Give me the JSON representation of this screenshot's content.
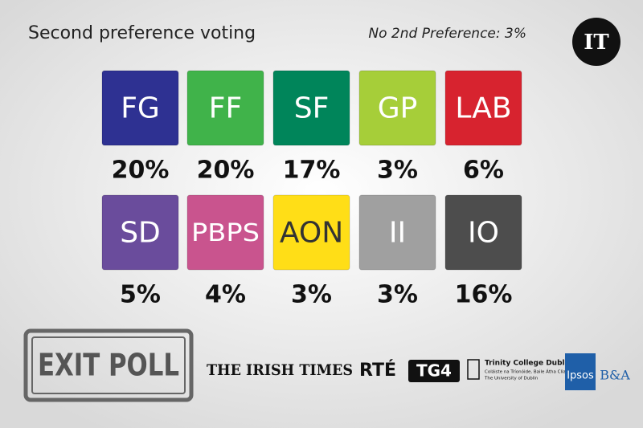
{
  "header": {
    "title": "Second preference voting",
    "note": "No 2nd Preference: 3%",
    "logo": "IT"
  },
  "parties": [
    {
      "label": "FG",
      "value": "20%",
      "color": "#2e3192",
      "text_color": "#ffffff"
    },
    {
      "label": "FF",
      "value": "20%",
      "color": "#40b34a",
      "text_color": "#ffffff"
    },
    {
      "label": "SF",
      "value": "17%",
      "color": "#00855a",
      "text_color": "#ffffff"
    },
    {
      "label": "GP",
      "value": "3%",
      "color": "#a6ce39",
      "text_color": "#ffffff"
    },
    {
      "label": "LAB",
      "value": "6%",
      "color": "#d7232f",
      "text_color": "#ffffff"
    },
    {
      "label": "SD",
      "value": "5%",
      "color": "#6a4c9c",
      "text_color": "#ffffff"
    },
    {
      "label": "PBPS",
      "value": "4%",
      "color": "#c9548e",
      "text_color": "#ffffff"
    },
    {
      "label": "AON",
      "value": "3%",
      "color": "#ffde17",
      "text_color": "#333333"
    },
    {
      "label": "II",
      "value": "3%",
      "color": "#a0a0a0",
      "text_color": "#ffffff"
    },
    {
      "label": "IO",
      "value": "16%",
      "color": "#4d4d4d",
      "text_color": "#ffffff"
    }
  ],
  "footer": {
    "stamp": "EXIT POLL",
    "partners": [
      "THE IRISH TIMES",
      "RTÉ",
      "TG4",
      "Trinity College Dublin",
      "Coláiste na Tríonóide, Baile Átha Cliath",
      "The University of Dublin",
      "Ipsos",
      "B&A"
    ]
  }
}
